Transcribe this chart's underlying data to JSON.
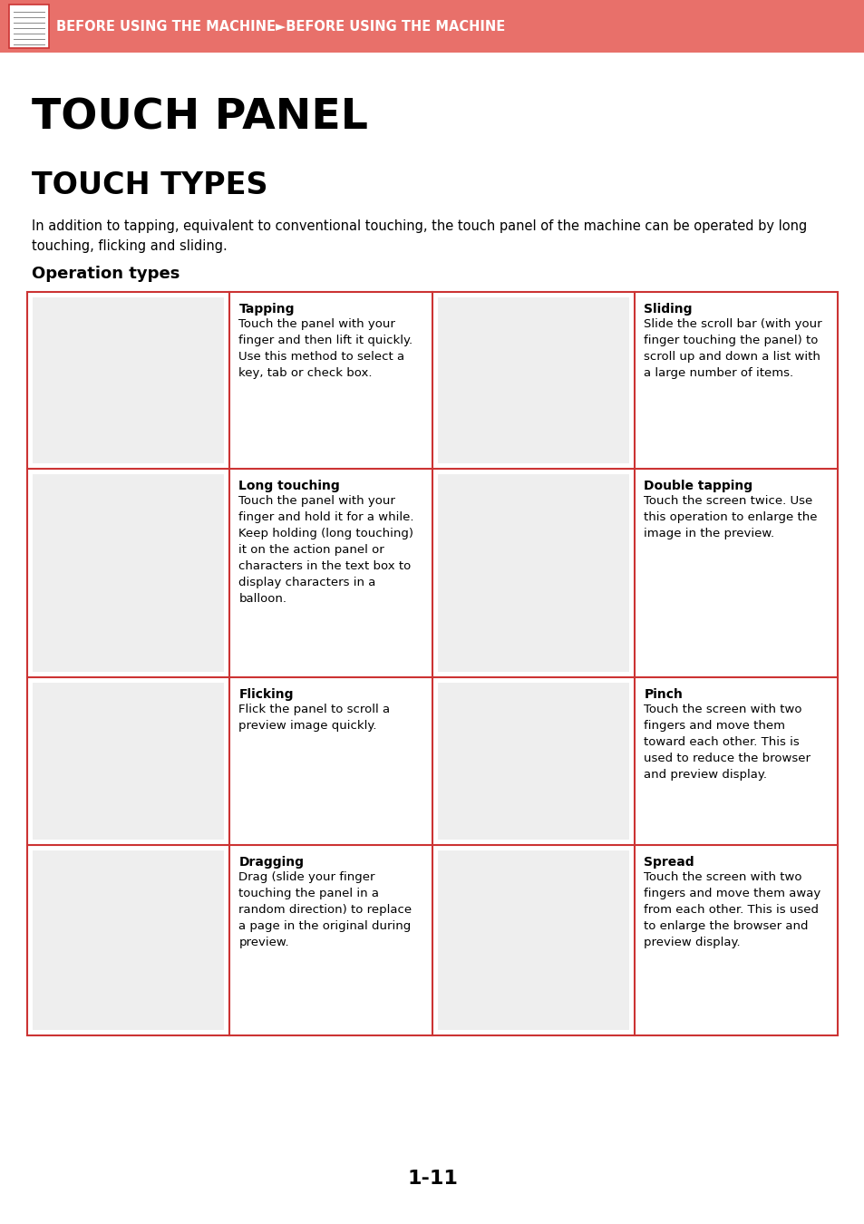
{
  "header_bg": "#E8706A",
  "header_text": "BEFORE USING THE MACHINE►BEFORE USING THE MACHINE",
  "header_text_color": "#ffffff",
  "title1": "TOUCH PANEL",
  "title2": "TOUCH TYPES",
  "body_text": "In addition to tapping, equivalent to conventional touching, the touch panel of the machine can be operated by long\ntouching, flicking and sliding.",
  "section_title": "Operation types",
  "table_border_color": "#cc3333",
  "page_number": "1-11",
  "bg_color": "#ffffff",
  "grid_rows": [
    {
      "left_label": "Tapping",
      "left_desc": "Touch the panel with your\nfinger and then lift it quickly.\nUse this method to select a\nkey, tab or check box.",
      "right_label": "Sliding",
      "right_desc": "Slide the scroll bar (with your\nfinger touching the panel) to\nscroll up and down a list with\na large number of items."
    },
    {
      "left_label": "Long touching",
      "left_desc": "Touch the panel with your\nfinger and hold it for a while.\nKeep holding (long touching)\nit on the action panel or\ncharacters in the text box to\ndisplay characters in a\nballoon.",
      "right_label": "Double tapping",
      "right_desc": "Touch the screen twice. Use\nthis operation to enlarge the\nimage in the preview."
    },
    {
      "left_label": "Flicking",
      "left_desc": "Flick the panel to scroll a\npreview image quickly.",
      "right_label": "Pinch",
      "right_desc": "Touch the screen with two\nfingers and move them\ntoward each other. This is\nused to reduce the browser\nand preview display."
    },
    {
      "left_label": "Dragging",
      "left_desc": "Drag (slide your finger\ntouching the panel in a\nrandom direction) to replace\na page in the original during\npreview.",
      "right_label": "Spread",
      "right_desc": "Touch the screen with two\nfingers and move them away\nfrom each other. This is used\nto enlarge the browser and\npreview display."
    }
  ]
}
